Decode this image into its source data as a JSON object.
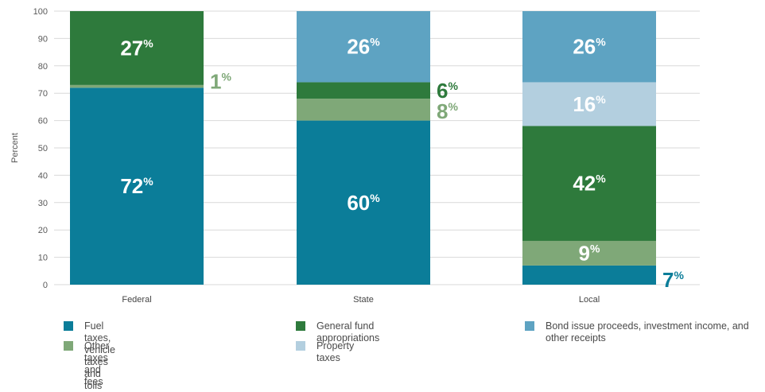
{
  "chart_data": {
    "type": "bar",
    "stacked": true,
    "categories": [
      "Federal",
      "State",
      "Local"
    ],
    "ylabel": "Percent",
    "ylim": [
      0,
      100
    ],
    "yticks": [
      0,
      10,
      20,
      30,
      40,
      50,
      60,
      70,
      80,
      90,
      100
    ],
    "grid": true,
    "legend_position": "bottom",
    "series": [
      {
        "name": "Fuel taxes, vehicle taxes and tolls",
        "color": "#0b7d99",
        "values": [
          72,
          60,
          7
        ]
      },
      {
        "name": "Other taxes and fees",
        "color": "#7fa878",
        "values": [
          1,
          8,
          9
        ]
      },
      {
        "name": "General fund appropriations",
        "color": "#2e7a3c",
        "values": [
          27,
          6,
          42
        ]
      },
      {
        "name": "Property taxes",
        "color": "#b3cfdf",
        "values": [
          0,
          0,
          16
        ]
      },
      {
        "name": "Bond issue proceeds, investment income, and other receipts",
        "color": "#5ea3c2",
        "values": [
          0,
          26,
          26
        ]
      }
    ],
    "data_labels": [
      {
        "category": "Federal",
        "series": "Fuel taxes, vehicle taxes and tolls",
        "value": "72",
        "suffix": "%",
        "inside": true
      },
      {
        "category": "Federal",
        "series": "Other taxes and fees",
        "value": "1",
        "suffix": "%",
        "inside": false,
        "color": "#7fa878"
      },
      {
        "category": "Federal",
        "series": "General fund appropriations",
        "value": "27",
        "suffix": "%",
        "inside": true
      },
      {
        "category": "State",
        "series": "Fuel taxes, vehicle taxes and tolls",
        "value": "60",
        "suffix": "%",
        "inside": true
      },
      {
        "category": "State",
        "series": "Other taxes and fees",
        "value": "8",
        "suffix": "%",
        "inside": false,
        "color": "#7fa878"
      },
      {
        "category": "State",
        "series": "General fund appropriations",
        "value": "6",
        "suffix": "%",
        "inside": false,
        "color": "#2e7a3c"
      },
      {
        "category": "State",
        "series": "Bond issue proceeds, investment income, and other receipts",
        "value": "26",
        "suffix": "%",
        "inside": true
      },
      {
        "category": "Local",
        "series": "Fuel taxes, vehicle taxes and tolls",
        "value": "7",
        "suffix": "%",
        "inside": false,
        "color": "#0b7d99"
      },
      {
        "category": "Local",
        "series": "Other taxes and fees",
        "value": "9",
        "suffix": "%",
        "inside": true
      },
      {
        "category": "Local",
        "series": "General fund appropriations",
        "value": "42",
        "suffix": "%",
        "inside": true
      },
      {
        "category": "Local",
        "series": "Property taxes",
        "value": "16",
        "suffix": "%",
        "inside": true
      },
      {
        "category": "Local",
        "series": "Bond issue proceeds, investment income, and other receipts",
        "value": "26",
        "suffix": "%",
        "inside": true
      }
    ],
    "legend_order": [
      "Fuel taxes, vehicle taxes and tolls",
      "General fund appropriations",
      "Bond issue proceeds, investment income, and other receipts",
      "Other taxes and fees",
      "Property taxes"
    ]
  }
}
